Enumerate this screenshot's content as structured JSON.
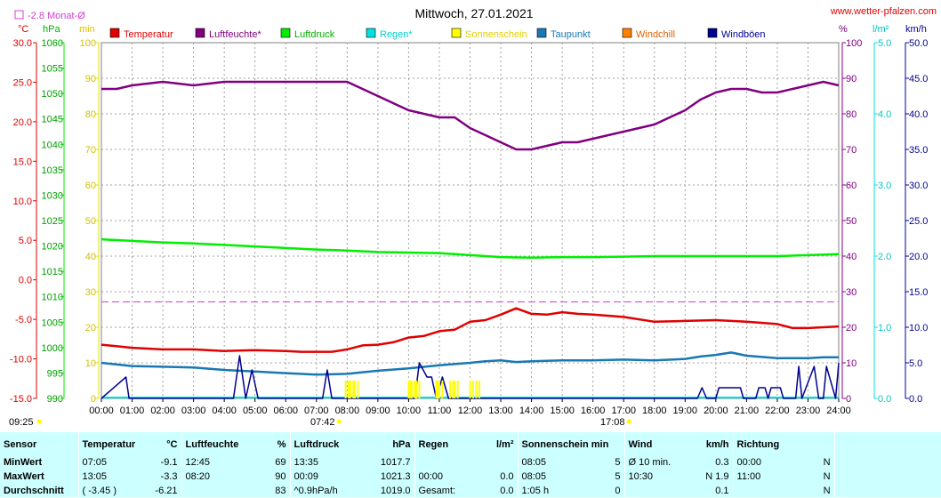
{
  "header": {
    "title": "Mittwoch, 27.01.2021",
    "website": "www.wetter-pfalzen.com",
    "monthly_avg_legend": "-2.8 Monat-Ø"
  },
  "axes": {
    "temp_unit": "°C",
    "pressure_unit": "hPa",
    "sun_unit": "min",
    "humidity_unit": "%",
    "rain_unit": "l/m²",
    "wind_unit": "km/h",
    "temp_ticks": [
      "30.0",
      "25.0",
      "20.0",
      "15.0",
      "10.0",
      "5.0",
      "0.0",
      "-5.0",
      "-10.0",
      "-15.0"
    ],
    "pressure_ticks": [
      "1060",
      "1055",
      "1050",
      "1045",
      "1040",
      "1035",
      "1030",
      "1025",
      "1020",
      "1015",
      "1010",
      "1005",
      "1000",
      "995",
      "990"
    ],
    "sun_ticks": [
      "100",
      "90",
      "80",
      "70",
      "60",
      "50",
      "40",
      "30",
      "20",
      "10",
      "0"
    ],
    "humidity_ticks": [
      "100",
      "90",
      "80",
      "70",
      "60",
      "50",
      "40",
      "30",
      "20",
      "10",
      "0"
    ],
    "rain_ticks": [
      "5.0",
      "4.0",
      "3.0",
      "2.0",
      "1.0",
      "0.0"
    ],
    "wind_ticks": [
      "50.0",
      "45.0",
      "40.0",
      "35.0",
      "30.0",
      "25.0",
      "20.0",
      "15.0",
      "10.0",
      "5.0",
      "0.0"
    ],
    "time_ticks": [
      "00:00",
      "01:00",
      "02:00",
      "03:00",
      "04:00",
      "05:00",
      "06:00",
      "07:00",
      "08:00",
      "09:00",
      "10:00",
      "11:00",
      "12:00",
      "13:00",
      "14:00",
      "15:00",
      "16:00",
      "17:00",
      "18:00",
      "19:00",
      "20:00",
      "21:00",
      "22:00",
      "23:00",
      "24:00"
    ]
  },
  "markers": {
    "sunshine_duration": "09:25",
    "sunrise": "07:42",
    "sunset": "17:08"
  },
  "colors": {
    "temp": "#e00000",
    "humidity": "#800080",
    "pressure": "#00ee00",
    "rain": "#00e0e0",
    "sunshine": "#ffff00",
    "dewpoint": "#1878b4",
    "windchill": "#ff8000",
    "gusts": "#000090",
    "monthly_avg": "#d040d0",
    "table_bg": "#ccffff"
  },
  "chart_data": {
    "type": "line",
    "title": "Mittwoch, 27.01.2021",
    "x_range": [
      0,
      24
    ],
    "temp_range": [
      -15,
      30
    ],
    "pressure_range": [
      990,
      1060
    ],
    "humidity_range": [
      0,
      100
    ],
    "sun_range": [
      0,
      100
    ],
    "rain_range": [
      0,
      5
    ],
    "wind_range": [
      0,
      50
    ],
    "monthly_avg_temp": -2.8,
    "legend": [
      "Temperatur",
      "Luftfeuchte*",
      "Luftdruck",
      "Regen*",
      "Sonnenschein",
      "Taupunkt",
      "Windchill",
      "Windböen"
    ],
    "series": [
      {
        "name": "Temperatur",
        "axis": "temp",
        "x": [
          0,
          1,
          2,
          3,
          4,
          5,
          6,
          6.5,
          7,
          7.5,
          8,
          8.5,
          9,
          9.5,
          10,
          10.5,
          11,
          11.5,
          12,
          12.5,
          13,
          13.5,
          14,
          14.5,
          15,
          15.5,
          16,
          17,
          18,
          19,
          20,
          21,
          22,
          22.5,
          23,
          24
        ],
        "y": [
          -8.2,
          -8.6,
          -8.8,
          -8.8,
          -9.0,
          -8.9,
          -9.0,
          -9.1,
          -9.1,
          -9.1,
          -8.8,
          -8.3,
          -8.2,
          -7.9,
          -7.3,
          -7.1,
          -6.5,
          -6.3,
          -5.3,
          -5.1,
          -4.4,
          -3.6,
          -4.3,
          -4.4,
          -4.1,
          -4.3,
          -4.4,
          -4.7,
          -5.3,
          -5.2,
          -5.1,
          -5.3,
          -5.6,
          -6.1,
          -6.1,
          -5.9
        ]
      },
      {
        "name": "Luftfeuchte*",
        "axis": "humidity",
        "x": [
          0,
          0.5,
          1,
          2,
          3,
          4,
          5,
          6,
          7,
          8,
          8.5,
          9,
          9.5,
          10,
          10.5,
          11,
          11.5,
          12,
          12.5,
          13,
          13.5,
          14,
          14.5,
          15,
          15.5,
          16,
          16.5,
          17,
          17.5,
          18,
          18.5,
          19,
          19.5,
          20,
          20.5,
          21,
          21.5,
          22,
          22.5,
          23,
          23.5,
          24
        ],
        "y": [
          87,
          87,
          88,
          89,
          88,
          89,
          89,
          89,
          89,
          89,
          87,
          85,
          83,
          81,
          80,
          79,
          79,
          76,
          74,
          72,
          70,
          70,
          71,
          72,
          72,
          73,
          74,
          75,
          76,
          77,
          79,
          81,
          84,
          86,
          87,
          87,
          86,
          86,
          87,
          88,
          89,
          88
        ]
      },
      {
        "name": "Luftdruck",
        "axis": "pressure",
        "x": [
          0,
          1,
          2,
          3,
          4,
          5,
          6,
          7,
          8,
          9,
          10,
          11,
          12,
          13,
          14,
          15,
          16,
          17,
          18,
          19,
          20,
          21,
          22,
          23,
          24
        ],
        "y": [
          1021.3,
          1021.0,
          1020.7,
          1020.5,
          1020.2,
          1019.9,
          1019.6,
          1019.3,
          1019.1,
          1018.8,
          1018.7,
          1018.6,
          1018.2,
          1017.8,
          1017.7,
          1017.8,
          1017.8,
          1017.9,
          1018.0,
          1018.0,
          1018.0,
          1018.0,
          1018.0,
          1018.2,
          1018.4
        ]
      },
      {
        "name": "Taupunkt",
        "axis": "temp",
        "x": [
          0,
          1,
          2,
          3,
          4,
          5,
          6,
          7,
          8,
          9,
          10,
          11,
          12,
          12.5,
          13,
          13.5,
          14,
          15,
          16,
          17,
          18,
          19,
          19.5,
          20,
          20.5,
          21,
          22,
          23,
          23.5,
          24
        ],
        "y": [
          -10.5,
          -10.9,
          -11.0,
          -11.1,
          -11.4,
          -11.6,
          -11.8,
          -12.0,
          -11.9,
          -11.5,
          -11.2,
          -10.8,
          -10.5,
          -10.3,
          -10.2,
          -10.4,
          -10.3,
          -10.2,
          -10.2,
          -10.1,
          -10.2,
          -10.0,
          -9.7,
          -9.5,
          -9.2,
          -9.6,
          -9.9,
          -9.9,
          -9.8,
          -9.8
        ]
      },
      {
        "name": "Windböen",
        "axis": "wind",
        "x": [
          0,
          0.8,
          0.9,
          1.0,
          4.3,
          4.5,
          4.7,
          4.9,
          5.1,
          7.2,
          7.35,
          7.5,
          10.2,
          10.35,
          10.6,
          10.75,
          10.9,
          11.1,
          11.3,
          11.55,
          19.4,
          19.55,
          19.7,
          20.0,
          20.1,
          20.8,
          20.9,
          21.3,
          21.4,
          21.6,
          21.7,
          21.8,
          22.1,
          22.2,
          22.6,
          22.7,
          22.8,
          23.2,
          23.35,
          23.5,
          23.6,
          23.9,
          24
        ],
        "y": [
          0,
          3,
          0,
          0,
          0,
          6,
          0,
          4,
          0,
          0,
          4,
          0,
          0,
          5,
          3,
          3,
          0,
          3,
          0,
          0,
          0,
          1.5,
          0,
          0,
          1.5,
          1.5,
          0,
          0,
          1.5,
          1.5,
          0,
          1.5,
          1.5,
          0,
          0,
          4.5,
          0,
          4.5,
          0,
          0,
          4.5,
          0,
          5
        ]
      },
      {
        "name": "Sonnenschein",
        "axis": "sun",
        "x": [
          7.95,
          8.05,
          8.1,
          8.2,
          8.25,
          8.35,
          10.0,
          10.05,
          10.1,
          10.2,
          10.25,
          10.35,
          10.9,
          10.95,
          11.0,
          11.1,
          11.35,
          11.45,
          11.5,
          11.6,
          12.0,
          12.1,
          12.2,
          12.3
        ],
        "y": [
          5,
          5,
          5,
          5,
          5,
          5,
          5,
          5,
          5,
          5,
          5,
          5,
          5,
          5,
          5,
          5,
          5,
          5,
          5,
          5,
          5,
          5,
          5,
          5
        ]
      }
    ]
  },
  "table": {
    "headers": [
      "Sensor",
      "Temperatur",
      "°C",
      "Luftfeuchte",
      "%",
      "Luftdruck",
      "hPa",
      "Regen",
      "l/m²",
      "Sonnenschein min",
      "Wind",
      "km/h",
      "Richtung"
    ],
    "rows": [
      {
        "label": "MinWert",
        "cells": [
          "07:05",
          "-9.1",
          "12:45",
          "69",
          "13:35",
          "1017.7",
          "",
          "",
          "08:05",
          "5",
          "Ø 10 min.",
          "0.3",
          "00:00",
          "N"
        ]
      },
      {
        "label": "MaxWert",
        "cells": [
          "13:05",
          "-3.3",
          "08:20",
          "90",
          "00:09",
          "1021.3",
          "00:00",
          "0.0",
          "08:05",
          "5",
          "10:30",
          "N 1.9",
          "11:00",
          "N"
        ]
      },
      {
        "label": "Durchschnitt",
        "cells": [
          "( -3.45 )",
          "-6.21",
          "",
          "83",
          "^0.9hPa/h",
          "1019.0",
          "Gesamt:",
          "0.0",
          "1:05 h",
          "0",
          "",
          "0.1",
          "",
          "N"
        ]
      }
    ]
  }
}
